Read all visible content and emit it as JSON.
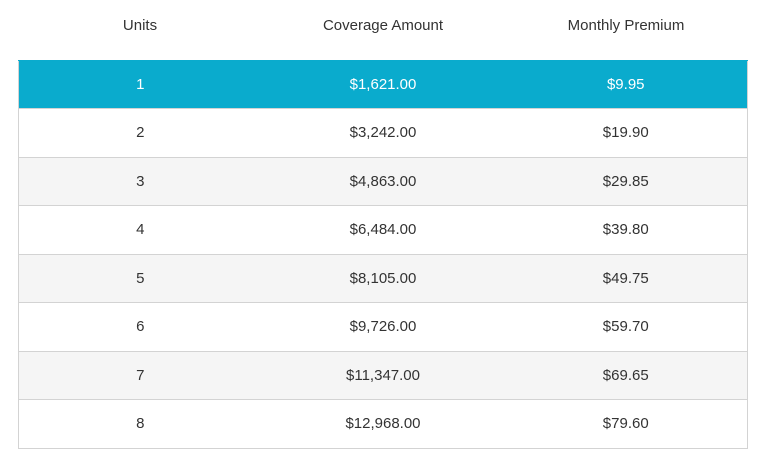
{
  "table": {
    "headers": [
      "Units",
      "Coverage Amount",
      "Monthly Premium"
    ],
    "rows": [
      [
        "1",
        "$1,621.00",
        "$9.95"
      ],
      [
        "2",
        "$3,242.00",
        "$19.90"
      ],
      [
        "3",
        "$4,863.00",
        "$29.85"
      ],
      [
        "4",
        "$6,484.00",
        "$39.80"
      ],
      [
        "5",
        "$8,105.00",
        "$49.75"
      ],
      [
        "6",
        "$9,726.00",
        "$59.70"
      ],
      [
        "7",
        "$11,347.00",
        "$69.65"
      ],
      [
        "8",
        "$12,968.00",
        "$79.60"
      ]
    ]
  }
}
